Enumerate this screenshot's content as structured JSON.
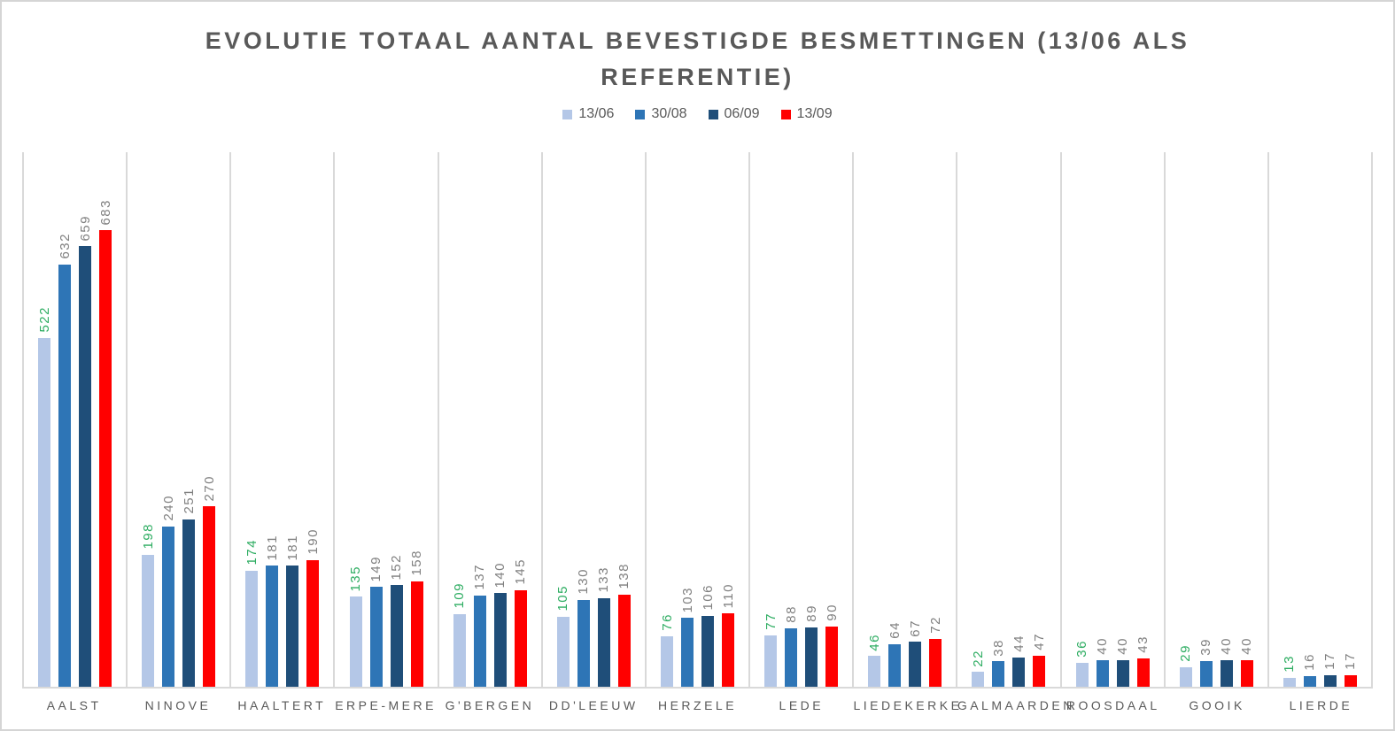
{
  "header": {
    "title_lines": {
      "line1": "EVOLUTIE TOTAAL AANTAL BEVESTIGDE BESMETTINGEN (13/06 ALS",
      "line2": "REFERENTIE)"
    }
  },
  "colors": {
    "title_text": "#595959",
    "axis_label_text": "#595959",
    "value_label_gray": "#808080",
    "value_label_green": "#2ead62",
    "gridline": "#d9d9d9",
    "frame_border": "#d5d5d5"
  },
  "chart_data": {
    "type": "bar",
    "title": "EVOLUTIE TOTAAL AANTAL BEVESTIGDE BESMETTINGEN (13/06 ALS REFERENTIE)",
    "categories": [
      "AALST",
      "NINOVE",
      "HAALTERT",
      "ERPE-MERE",
      "G'BERGEN",
      "DD'LEEUW",
      "HERZELE",
      "LEDE",
      "LIEDEKERKE",
      "GALMAARDEN",
      "ROOSDAAL",
      "GOOIK",
      "LIERDE"
    ],
    "series": [
      {
        "name": "13/06",
        "color": "#b4c7e7",
        "label_color": "#2ead62",
        "values": [
          522,
          198,
          174,
          135,
          109,
          105,
          76,
          77,
          46,
          22,
          36,
          29,
          13
        ]
      },
      {
        "name": "30/08",
        "color": "#2e75b6",
        "label_color": "#808080",
        "values": [
          632,
          240,
          181,
          149,
          137,
          130,
          103,
          88,
          64,
          38,
          40,
          39,
          16
        ]
      },
      {
        "name": "06/09",
        "color": "#1f4e79",
        "label_color": "#808080",
        "values": [
          659,
          251,
          181,
          152,
          140,
          133,
          106,
          89,
          67,
          44,
          40,
          40,
          17
        ]
      },
      {
        "name": "13/09",
        "color": "#ff0000",
        "label_color": "#808080",
        "values": [
          683,
          270,
          190,
          158,
          145,
          138,
          110,
          90,
          72,
          47,
          43,
          40,
          17
        ]
      }
    ],
    "ylim": [
      0,
      800
    ],
    "xlabel": "",
    "ylabel": "",
    "grid": "vertical-category-separators-only",
    "value_labels": "rotated-90-above-bars",
    "legend_position": "top-center"
  }
}
